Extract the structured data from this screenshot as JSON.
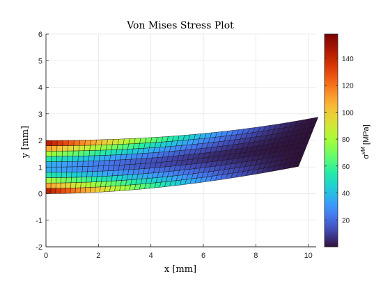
{
  "chart_data": {
    "type": "heatmap",
    "title": "Von Mises Stress Plot",
    "xlabel": "x [mm]",
    "ylabel": "y [mm]",
    "xlim": [
      0,
      10.3
    ],
    "ylim": [
      -2,
      6
    ],
    "x_ticks": [
      "0",
      "2",
      "4",
      "6",
      "8",
      "10"
    ],
    "y_ticks": [
      "-2",
      "-1",
      "0",
      "1",
      "2",
      "3",
      "4",
      "5",
      "6"
    ],
    "grid": true,
    "colorbar": {
      "label_base": "σ",
      "label_sup": "vM",
      "label_unit": " [MPa]",
      "range": [
        0,
        158
      ],
      "ticks": [
        "20",
        "40",
        "60",
        "80",
        "100",
        "120",
        "140"
      ],
      "colormap": "turbo"
    },
    "beam": {
      "length": 10,
      "height": 2,
      "tip_rotation_deg": -22,
      "tip_displacement_y": 0.95,
      "max_stress": 158,
      "mesh_nx": 50,
      "mesh_ny": 10
    }
  }
}
